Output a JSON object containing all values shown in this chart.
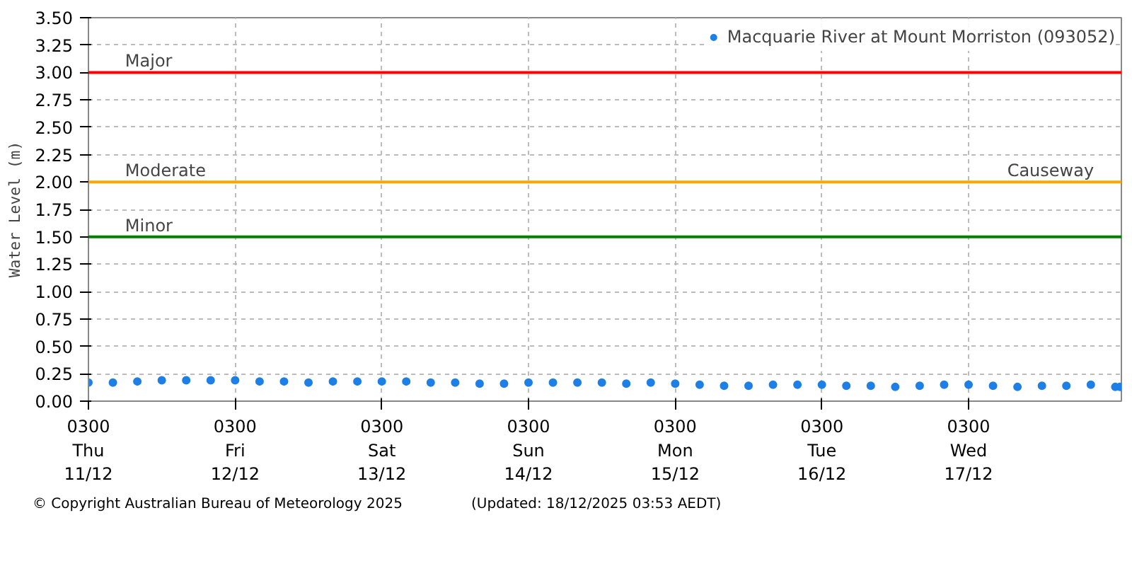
{
  "chart_data": {
    "type": "scatter",
    "ylabel": "Water Level (m)",
    "x": [
      "2025-12-11T03:00",
      "2025-12-11T07:00",
      "2025-12-11T11:00",
      "2025-12-11T15:00",
      "2025-12-11T19:00",
      "2025-12-11T23:00",
      "2025-12-12T03:00",
      "2025-12-12T07:00",
      "2025-12-12T11:00",
      "2025-12-12T15:00",
      "2025-12-12T19:00",
      "2025-12-12T23:00",
      "2025-12-13T03:00",
      "2025-12-13T07:00",
      "2025-12-13T11:00",
      "2025-12-13T15:00",
      "2025-12-13T19:00",
      "2025-12-13T23:00",
      "2025-12-14T03:00",
      "2025-12-14T07:00",
      "2025-12-14T11:00",
      "2025-12-14T15:00",
      "2025-12-14T19:00",
      "2025-12-14T23:00",
      "2025-12-15T03:00",
      "2025-12-15T07:00",
      "2025-12-15T11:00",
      "2025-12-15T15:00",
      "2025-12-15T19:00",
      "2025-12-15T23:00",
      "2025-12-16T03:00",
      "2025-12-16T07:00",
      "2025-12-16T11:00",
      "2025-12-16T15:00",
      "2025-12-16T19:00",
      "2025-12-16T23:00",
      "2025-12-17T03:00",
      "2025-12-17T07:00",
      "2025-12-17T11:00",
      "2025-12-17T15:00",
      "2025-12-17T19:00",
      "2025-12-17T23:00",
      "2025-12-18T03:00",
      "2025-12-18T03:45"
    ],
    "series": [
      {
        "name": "Macquarie River at Mount Morriston (093052)",
        "color": "#1e7fe6",
        "values": [
          0.17,
          0.17,
          0.18,
          0.19,
          0.19,
          0.19,
          0.19,
          0.18,
          0.18,
          0.17,
          0.18,
          0.18,
          0.18,
          0.18,
          0.17,
          0.17,
          0.16,
          0.16,
          0.17,
          0.17,
          0.17,
          0.17,
          0.16,
          0.17,
          0.16,
          0.15,
          0.14,
          0.14,
          0.15,
          0.15,
          0.15,
          0.14,
          0.14,
          0.13,
          0.14,
          0.15,
          0.15,
          0.14,
          0.13,
          0.14,
          0.14,
          0.15,
          0.13,
          0.13
        ]
      }
    ],
    "xlim": [
      "2025-12-11T03:00",
      "2025-12-18T04:00"
    ],
    "xticks": [
      {
        "value": "2025-12-11T03:00",
        "label": "0300\nThu\n11/12"
      },
      {
        "value": "2025-12-12T03:00",
        "label": "0300\nFri\n12/12"
      },
      {
        "value": "2025-12-13T03:00",
        "label": "0300\nSat\n13/12"
      },
      {
        "value": "2025-12-14T03:00",
        "label": "0300\nSun\n14/12"
      },
      {
        "value": "2025-12-15T03:00",
        "label": "0300\nMon\n15/12"
      },
      {
        "value": "2025-12-16T03:00",
        "label": "0300\nTue\n16/12"
      },
      {
        "value": "2025-12-17T03:00",
        "label": "0300\nWed\n17/12"
      }
    ],
    "ylim": [
      0,
      3.5
    ],
    "yticks": [
      {
        "value": 0,
        "label": "0.00"
      },
      0.25,
      {
        "value": 0.5,
        "label": "0.50"
      },
      0.75,
      {
        "value": 1,
        "label": "1.00"
      },
      1.25,
      {
        "value": 1.5,
        "label": "1.50"
      },
      1.75,
      {
        "value": 2,
        "label": "2.00"
      },
      2.25,
      {
        "value": 2.5,
        "label": "2.50"
      },
      2.75,
      {
        "value": 3,
        "label": "3.00"
      },
      3.25,
      {
        "value": 3.5,
        "label": "3.50"
      }
    ],
    "ref_lines": [
      {
        "axis": "y",
        "value": 3.0,
        "label": "Major",
        "color": "#ff0000"
      },
      {
        "axis": "y",
        "value": 2.0,
        "label": "Moderate",
        "color": "#ffa500"
      },
      {
        "axis": "y",
        "value": 1.5,
        "label": "Minor",
        "color": "#008000"
      }
    ],
    "annotations": [
      {
        "text": "Causeway",
        "x": "2025-12-17T23:30",
        "y": 2.0
      },
      "© Copyright Australian Bureau of Meteorology 2025",
      "(Updated: 18/12/2025 03:53 AEDT)"
    ],
    "grid": true,
    "legend": "top right",
    "marker": "circle"
  }
}
